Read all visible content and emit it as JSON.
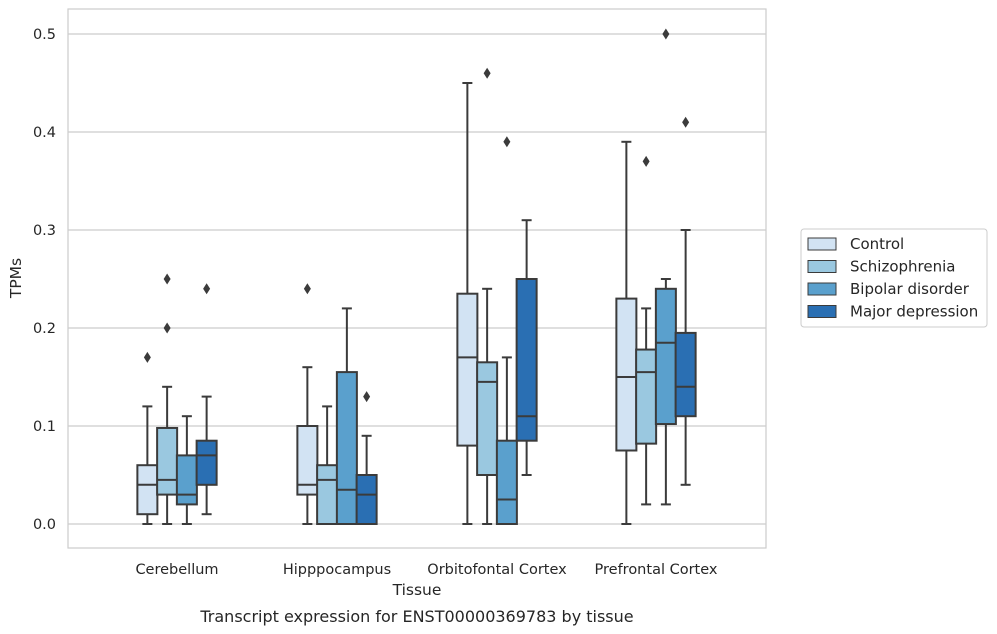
{
  "chart_data": {
    "type": "box",
    "title": "",
    "caption": "Transcript expression for ENST00000369783 by tissue",
    "xlabel": "Tissue",
    "ylabel": "TPMs",
    "ylim": [
      -0.025,
      0.525
    ],
    "yticks": [
      0.0,
      0.1,
      0.2,
      0.3,
      0.4,
      0.5
    ],
    "ytick_labels": [
      "0.0",
      "0.1",
      "0.2",
      "0.3",
      "0.4",
      "0.5"
    ],
    "grid": "horizontal",
    "legend_position": "right",
    "categories": [
      "Cerebellum",
      "Hipppocampus",
      "Orbitofontal Cortex",
      "Prefrontal Cortex"
    ],
    "series": [
      {
        "name": "Control",
        "color": "#d2e3f3",
        "boxes": [
          {
            "whisker_low": 0.0,
            "q1": 0.01,
            "median": 0.04,
            "q3": 0.06,
            "whisker_high": 0.12,
            "outliers": [
              0.17
            ]
          },
          {
            "whisker_low": 0.0,
            "q1": 0.03,
            "median": 0.04,
            "q3": 0.1,
            "whisker_high": 0.16,
            "outliers": [
              0.24
            ]
          },
          {
            "whisker_low": 0.0,
            "q1": 0.08,
            "median": 0.17,
            "q3": 0.235,
            "whisker_high": 0.45,
            "outliers": []
          },
          {
            "whisker_low": 0.0,
            "q1": 0.075,
            "median": 0.15,
            "q3": 0.23,
            "whisker_high": 0.39,
            "outliers": []
          }
        ]
      },
      {
        "name": "Schizophrenia",
        "color": "#9ac8e0",
        "boxes": [
          {
            "whisker_low": 0.0,
            "q1": 0.03,
            "median": 0.045,
            "q3": 0.098,
            "whisker_high": 0.14,
            "outliers": [
              0.2,
              0.25
            ]
          },
          {
            "whisker_low": 0.0,
            "q1": 0.0,
            "median": 0.045,
            "q3": 0.06,
            "whisker_high": 0.12,
            "outliers": []
          },
          {
            "whisker_low": 0.0,
            "q1": 0.05,
            "median": 0.145,
            "q3": 0.165,
            "whisker_high": 0.24,
            "outliers": [
              0.46
            ]
          },
          {
            "whisker_low": 0.02,
            "q1": 0.082,
            "median": 0.155,
            "q3": 0.178,
            "whisker_high": 0.22,
            "outliers": [
              0.37
            ]
          }
        ]
      },
      {
        "name": "Bipolar disorder",
        "color": "#5aa0cd",
        "boxes": [
          {
            "whisker_low": 0.0,
            "q1": 0.02,
            "median": 0.03,
            "q3": 0.07,
            "whisker_high": 0.11,
            "outliers": []
          },
          {
            "whisker_low": 0.0,
            "q1": 0.0,
            "median": 0.035,
            "q3": 0.155,
            "whisker_high": 0.22,
            "outliers": []
          },
          {
            "whisker_low": 0.0,
            "q1": 0.0,
            "median": 0.025,
            "q3": 0.085,
            "whisker_high": 0.17,
            "outliers": [
              0.39
            ]
          },
          {
            "whisker_low": 0.02,
            "q1": 0.102,
            "median": 0.185,
            "q3": 0.24,
            "whisker_high": 0.25,
            "outliers": [
              0.5
            ]
          }
        ]
      },
      {
        "name": "Major depression",
        "color": "#2a6fb3",
        "boxes": [
          {
            "whisker_low": 0.01,
            "q1": 0.04,
            "median": 0.07,
            "q3": 0.085,
            "whisker_high": 0.13,
            "outliers": [
              0.24
            ]
          },
          {
            "whisker_low": 0.0,
            "q1": 0.0,
            "median": 0.03,
            "q3": 0.05,
            "whisker_high": 0.09,
            "outliers": [
              0.13
            ]
          },
          {
            "whisker_low": 0.05,
            "q1": 0.085,
            "median": 0.11,
            "q3": 0.25,
            "whisker_high": 0.31,
            "outliers": []
          },
          {
            "whisker_low": 0.04,
            "q1": 0.11,
            "median": 0.14,
            "q3": 0.195,
            "whisker_high": 0.3,
            "outliers": [
              0.41
            ]
          }
        ]
      }
    ],
    "colors": {
      "grid": "#cccccc",
      "frame": "#cccccc",
      "stroke": "#3b3b3b",
      "text": "#262626"
    }
  }
}
